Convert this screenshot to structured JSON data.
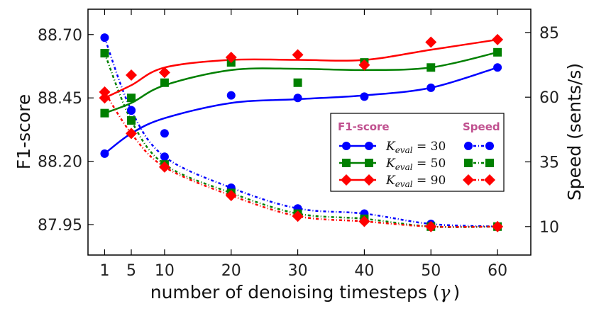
{
  "chart_data": {
    "type": "line",
    "xlabel": "number of denoising timesteps (",
    "xlabel_symbol": "γ",
    "xlabel_close": ")",
    "ylabel_left": "F1-score",
    "ylabel_right": "Speed (sents/s)",
    "x_ticks": [
      "1",
      "5",
      "10",
      "20",
      "30",
      "40",
      "50",
      "60"
    ],
    "x_tick_values": [
      1,
      5,
      10,
      20,
      30,
      40,
      50,
      60
    ],
    "y_left_ticks": [
      "87.95",
      "88.20",
      "88.45",
      "88.70"
    ],
    "y_left_tick_values": [
      87.95,
      88.2,
      88.45,
      88.7
    ],
    "y_right_ticks": [
      "10",
      "35",
      "60",
      "85"
    ],
    "y_right_tick_values": [
      10,
      35,
      60,
      85
    ],
    "xlim": [
      -1.5,
      65
    ],
    "ylim_left": [
      87.83,
      88.8
    ],
    "ylim_right": [
      -1,
      94
    ],
    "legend": {
      "f1_header": "F1-score",
      "speed_header": "Speed",
      "header_color": "#c0508f",
      "position": "center-right"
    },
    "series": [
      {
        "name": "K_eval=30",
        "label_main": "K",
        "label_sub": "eval",
        "label_rest": " = 30",
        "color": "#0000ff",
        "marker": "circle",
        "x": [
          1,
          5,
          10,
          20,
          30,
          40,
          50,
          60
        ],
        "f1": [
          88.23,
          88.4,
          88.31,
          88.46,
          88.45,
          88.455,
          88.49,
          88.57
        ],
        "f1_fit": [
          88.23,
          88.31,
          88.37,
          88.43,
          88.445,
          88.46,
          88.49,
          88.57
        ],
        "speed": [
          83,
          55,
          37,
          25,
          17,
          15,
          11,
          10
        ]
      },
      {
        "name": "K_eval=50",
        "label_main": "K",
        "label_sub": "eval",
        "label_rest": " = 50",
        "color": "#008000",
        "marker": "square",
        "x": [
          1,
          5,
          10,
          20,
          30,
          40,
          50,
          60
        ],
        "f1": [
          88.39,
          88.45,
          88.51,
          88.59,
          88.51,
          88.59,
          88.57,
          88.63
        ],
        "f1_fit": [
          88.39,
          88.43,
          88.5,
          88.56,
          88.565,
          88.56,
          88.57,
          88.63
        ],
        "speed": [
          77,
          51,
          34,
          23,
          15,
          13,
          10,
          10
        ]
      },
      {
        "name": "K_eval=90",
        "label_main": "K",
        "label_sub": "eval",
        "label_rest": " = 90",
        "color": "#ff0000",
        "marker": "diamond",
        "x": [
          1,
          5,
          10,
          20,
          30,
          40,
          50,
          60
        ],
        "f1": [
          88.45,
          88.54,
          88.55,
          88.61,
          88.62,
          88.58,
          88.67,
          88.68
        ],
        "f1_fit": [
          88.45,
          88.5,
          88.57,
          88.6,
          88.6,
          88.6,
          88.64,
          88.68
        ],
        "speed": [
          62,
          46,
          33,
          22,
          14,
          12,
          10,
          10
        ]
      }
    ]
  }
}
